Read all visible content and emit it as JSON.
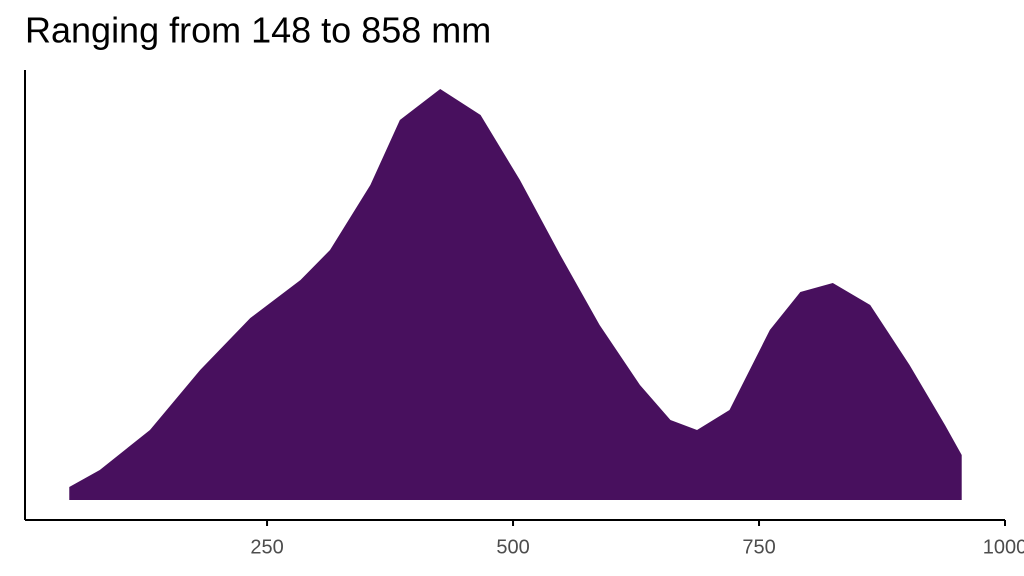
{
  "chart_data": {
    "type": "area",
    "title": "Ranging from 148 to 858 mm",
    "x": [
      49,
      80,
      131,
      182,
      233,
      284,
      314,
      355,
      385,
      426,
      467,
      507,
      548,
      588,
      629,
      660,
      687,
      720,
      761,
      792,
      825,
      863,
      903,
      939,
      956
    ],
    "values": [
      6.5e-05,
      0.00015,
      0.00035,
      0.00065,
      0.00091,
      0.0011,
      0.00125,
      0.001575,
      0.0019,
      0.002055,
      0.001925,
      0.0016,
      0.001225,
      0.000875,
      0.000575,
      0.0004,
      0.00035,
      0.00045,
      0.00085,
      0.00104,
      0.001085,
      0.000975,
      0.000675,
      0.000375,
      0.000225
    ],
    "color": "#48105e",
    "xlim": [
      4,
      1000
    ],
    "ylim": [
      -0.0001,
      0.00215
    ],
    "xticks": [
      250,
      500,
      750,
      1000
    ]
  }
}
